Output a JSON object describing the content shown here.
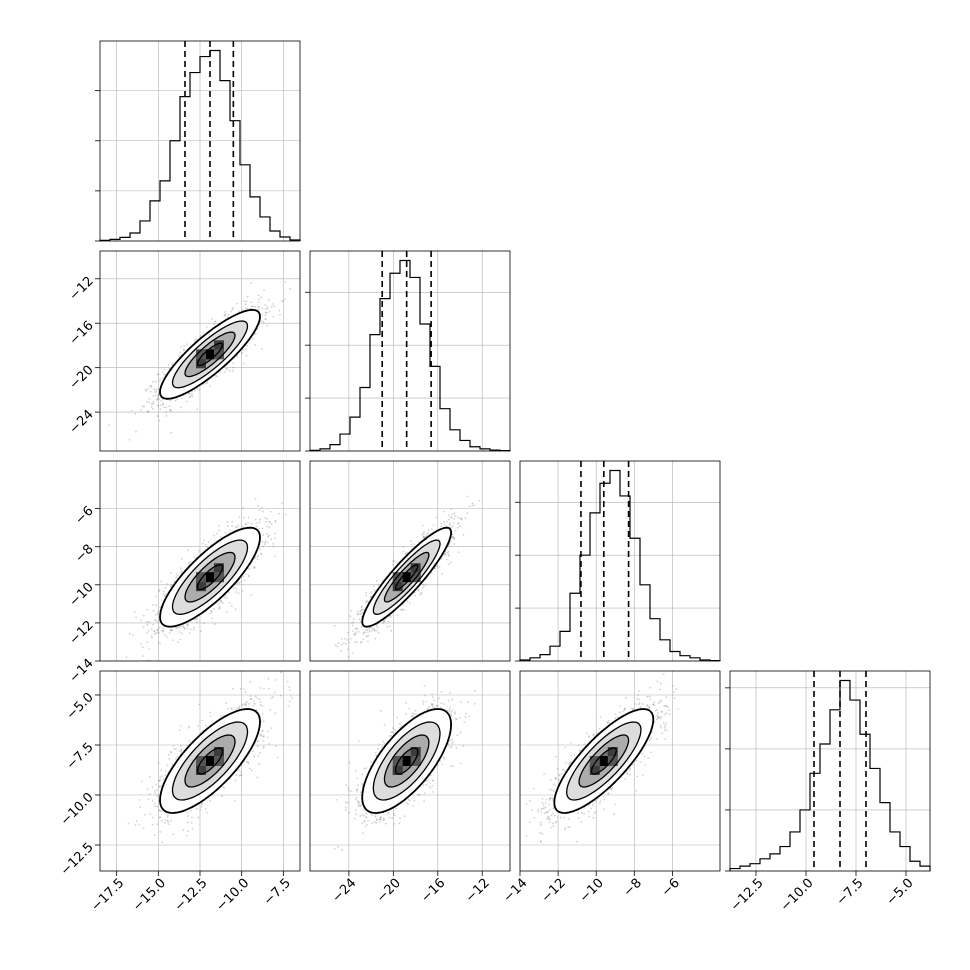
{
  "chart_data": {
    "type": "corner",
    "parameters": 4,
    "colors": {
      "ink": "#000000",
      "grid": "#b0b0b0",
      "scatter": "#7f7f7f"
    },
    "grid": true,
    "ranges": [
      [
        -18.5,
        -6.5
      ],
      [
        -27.5,
        -9.5
      ],
      [
        -14,
        -3.5
      ],
      [
        -13.8,
        -3.8
      ]
    ],
    "ticks": [
      {
        "values": [
          -17.5,
          -15.0,
          -12.5,
          -10.0,
          -7.5
        ],
        "labels": [
          "−17.5",
          "−15.0",
          "−12.5",
          "−10.0",
          "−7.5"
        ]
      },
      {
        "values": [
          -24,
          -20,
          -16,
          -12
        ],
        "labels": [
          "−24",
          "−20",
          "−16",
          "−12"
        ]
      },
      {
        "values": [
          -14,
          -12,
          -10,
          -8,
          -6
        ],
        "labels": [
          "−14",
          "−12",
          "−10",
          "−8",
          "−6"
        ]
      },
      {
        "values": [
          -12.5,
          -10.0,
          -7.5,
          -5.0
        ],
        "labels": [
          "−12.5",
          "−10.0",
          "−7.5",
          "−5.0"
        ]
      }
    ],
    "marginals": [
      {
        "param": 0,
        "quantiles": [
          -13.4,
          -11.9,
          -10.5
        ],
        "bin_edges": [
          -18.5,
          -17.9,
          -17.3,
          -16.7,
          -16.1,
          -15.5,
          -14.9,
          -14.3,
          -13.7,
          -13.1,
          -12.5,
          -11.9,
          -11.3,
          -10.7,
          -10.1,
          -9.5,
          -8.9,
          -8.3,
          -7.7,
          -7.1,
          -6.5
        ],
        "counts": [
          0.003,
          0.008,
          0.018,
          0.04,
          0.1,
          0.2,
          0.3,
          0.5,
          0.72,
          0.84,
          0.92,
          0.95,
          0.8,
          0.6,
          0.38,
          0.22,
          0.12,
          0.05,
          0.02,
          0.005
        ],
        "yticks": [
          0,
          0.25,
          0.5,
          0.75
        ]
      },
      {
        "param": 1,
        "quantiles": [
          -21.0,
          -18.8,
          -16.6
        ],
        "bin_edges": [
          -27.5,
          -26.6,
          -25.7,
          -24.8,
          -23.9,
          -23.0,
          -22.1,
          -21.2,
          -20.3,
          -19.4,
          -18.5,
          -17.6,
          -16.7,
          -15.8,
          -14.9,
          -14.0,
          -13.1,
          -12.2,
          -11.3,
          -10.4,
          -9.5
        ],
        "counts": [
          0.003,
          0.01,
          0.03,
          0.08,
          0.16,
          0.3,
          0.55,
          0.72,
          0.84,
          0.9,
          0.82,
          0.6,
          0.4,
          0.2,
          0.1,
          0.05,
          0.02,
          0.01,
          0.004,
          0.002
        ],
        "yticks": [
          0,
          0.25,
          0.5,
          0.75
        ]
      },
      {
        "param": 2,
        "quantiles": [
          -10.8,
          -9.6,
          -8.3
        ],
        "bin_edges": [
          -14.0,
          -13.475,
          -12.95,
          -12.425,
          -11.9,
          -11.375,
          -10.85,
          -10.325,
          -9.8,
          -9.275,
          -8.75,
          -8.225,
          -7.7,
          -7.175,
          -6.65,
          -6.125,
          -5.6,
          -5.075,
          -4.55,
          -4.025,
          -3.5
        ],
        "counts": [
          0.005,
          0.015,
          0.03,
          0.07,
          0.14,
          0.32,
          0.5,
          0.7,
          0.84,
          0.9,
          0.78,
          0.58,
          0.36,
          0.2,
          0.1,
          0.045,
          0.025,
          0.015,
          0.005,
          0.002
        ],
        "yticks": [
          0,
          0.25,
          0.5,
          0.75
        ]
      },
      {
        "param": 3,
        "quantiles": [
          -9.6,
          -8.3,
          -7.0
        ],
        "bin_edges": [
          -13.8,
          -13.3,
          -12.8,
          -12.3,
          -11.8,
          -11.3,
          -10.8,
          -10.3,
          -9.8,
          -9.3,
          -8.8,
          -8.3,
          -7.8,
          -7.3,
          -6.8,
          -6.3,
          -5.8,
          -5.3,
          -4.8,
          -4.3,
          -3.8
        ],
        "counts": [
          0.01,
          0.02,
          0.03,
          0.05,
          0.07,
          0.1,
          0.16,
          0.25,
          0.4,
          0.52,
          0.66,
          0.78,
          0.7,
          0.56,
          0.42,
          0.28,
          0.16,
          0.1,
          0.04,
          0.02
        ],
        "yticks": [
          0,
          0.25,
          0.5,
          0.75
        ]
      }
    ],
    "joint": [
      {
        "x": 0,
        "y": 1,
        "mean": [
          -11.9,
          -18.8
        ],
        "sd": [
          1.5,
          2.0
        ],
        "rho": 0.85
      },
      {
        "x": 0,
        "y": 2,
        "mean": [
          -11.9,
          -9.6
        ],
        "sd": [
          1.5,
          1.3
        ],
        "rho": 0.8
      },
      {
        "x": 1,
        "y": 2,
        "mean": [
          -18.8,
          -9.6
        ],
        "sd": [
          2.0,
          1.3
        ],
        "rho": 0.9
      },
      {
        "x": 0,
        "y": 3,
        "mean": [
          -11.9,
          -8.3
        ],
        "sd": [
          1.5,
          1.3
        ],
        "rho": 0.75
      },
      {
        "x": 1,
        "y": 3,
        "mean": [
          -18.8,
          -8.3
        ],
        "sd": [
          2.0,
          1.3
        ],
        "rho": 0.7
      },
      {
        "x": 2,
        "y": 3,
        "mean": [
          -9.6,
          -8.3
        ],
        "sd": [
          1.3,
          1.3
        ],
        "rho": 0.8
      }
    ],
    "contour_levels_sigma": [
      0.5,
      1.0,
      1.5,
      2.0
    ]
  }
}
